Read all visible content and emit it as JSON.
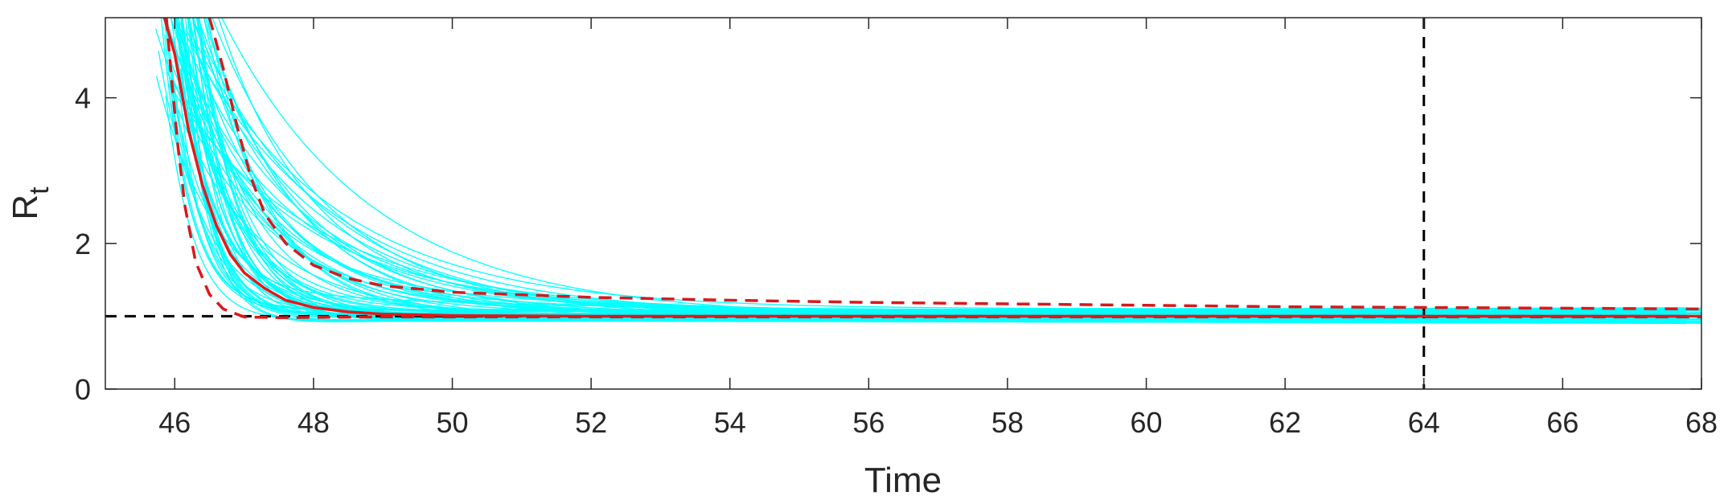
{
  "chart_data": {
    "type": "line",
    "title": "",
    "xlabel": "Time",
    "ylabel_main": "R",
    "ylabel_sub": "t",
    "xlim": [
      45,
      68
    ],
    "ylim": [
      0,
      5.1
    ],
    "xticks": [
      46,
      48,
      50,
      52,
      54,
      56,
      58,
      60,
      62,
      64,
      66,
      68
    ],
    "yticks": [
      0,
      2,
      4
    ],
    "grid": false,
    "legend": "none",
    "colors": {
      "samples": "#00ffff",
      "median": "#e31a1c",
      "bounds": "#d7191c",
      "reference": "#000000"
    },
    "reference_lines": {
      "horizontal_y": 1,
      "vertical_x": 64
    },
    "sample_count": 70,
    "series": [
      {
        "role": "median",
        "style": "solid",
        "x": [
          45.85,
          46.0,
          46.2,
          46.4,
          46.6,
          46.8,
          47.0,
          47.3,
          47.6,
          48.0,
          48.5,
          49.0,
          50,
          52,
          54,
          56,
          58,
          60,
          62,
          64,
          66,
          68
        ],
        "y": [
          5.1,
          4.6,
          3.55,
          2.8,
          2.25,
          1.85,
          1.6,
          1.38,
          1.22,
          1.12,
          1.06,
          1.03,
          1.01,
          1.0,
          1.0,
          1.0,
          1.0,
          1.0,
          1.0,
          1.0,
          1.0,
          1.0
        ]
      },
      {
        "role": "upper-bound",
        "style": "dashed",
        "x": [
          46.5,
          46.7,
          46.9,
          47.1,
          47.3,
          47.6,
          48.0,
          48.5,
          49.0,
          50,
          52,
          54,
          56,
          58,
          60,
          62,
          64,
          66,
          68
        ],
        "y": [
          5.1,
          4.4,
          3.6,
          2.9,
          2.4,
          2.0,
          1.7,
          1.52,
          1.42,
          1.33,
          1.26,
          1.22,
          1.19,
          1.17,
          1.15,
          1.13,
          1.12,
          1.11,
          1.1
        ]
      },
      {
        "role": "lower-bound",
        "style": "dashed",
        "x": [
          45.88,
          45.95,
          46.05,
          46.15,
          46.3,
          46.5,
          46.7,
          47.0,
          47.5,
          48.0,
          49,
          50,
          52,
          54,
          56,
          58,
          60,
          62,
          64,
          66,
          68
        ],
        "y": [
          5.1,
          4.3,
          3.3,
          2.5,
          1.75,
          1.3,
          1.1,
          0.99,
          0.98,
          0.985,
          0.99,
          0.99,
          0.99,
          0.99,
          0.99,
          0.99,
          0.99,
          0.99,
          0.99,
          0.99,
          0.99
        ]
      }
    ]
  }
}
